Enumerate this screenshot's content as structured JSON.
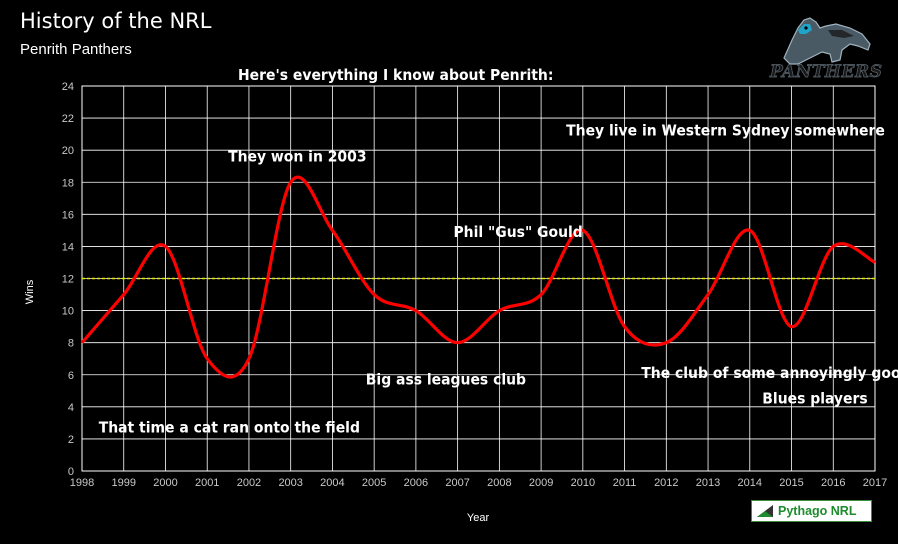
{
  "header": {
    "title": "History of the NRL",
    "subtitle": "Penrith Panthers",
    "logo_text": "PANTHERS"
  },
  "colors": {
    "background": "#000000",
    "line": "#ff0000",
    "reference_line": "#e6e600",
    "grid": "#ffffff",
    "badge_text": "#1e8b2e"
  },
  "icons": {
    "logo": "panther-icon",
    "badge": "pythago-triangle-icon"
  },
  "badge": {
    "text": "Pythago NRL"
  },
  "chart_data": {
    "type": "line",
    "title": "Here's everything I know about Penrith:",
    "xlabel": "Year",
    "ylabel": "Wins",
    "x": [
      1998,
      1999,
      2000,
      2001,
      2002,
      2003,
      2004,
      2005,
      2006,
      2007,
      2008,
      2009,
      2010,
      2011,
      2012,
      2013,
      2014,
      2015,
      2016,
      2017
    ],
    "series": [
      {
        "values": [
          8,
          11,
          14,
          7,
          7,
          18,
          15,
          11,
          10,
          8,
          10,
          11,
          15,
          9,
          8,
          11,
          15,
          9,
          14,
          13
        ]
      }
    ],
    "reference_line": {
      "y": 12,
      "style": "dashed"
    },
    "xlim": [
      1998,
      2017
    ],
    "ylim": [
      0,
      24
    ],
    "yticks": [
      0,
      2,
      4,
      6,
      8,
      10,
      12,
      14,
      16,
      18,
      20,
      22,
      24
    ],
    "grid": true,
    "legend": false,
    "annotations": [
      {
        "text": "They won in 2003",
        "x": 2001.5,
        "y": 19.3
      },
      {
        "text": "They live in Western Sydney somewhere",
        "x": 2009.6,
        "y": 20.9
      },
      {
        "text": "Phil \"Gus\" Gould",
        "x": 2006.9,
        "y": 14.6
      },
      {
        "text": "Big ass leagues club",
        "x": 2004.8,
        "y": 5.4
      },
      {
        "text": "The club of some annoyingly good",
        "x": 2011.4,
        "y": 5.8
      },
      {
        "text": "Blues players",
        "x": 2014.3,
        "y": 4.2
      },
      {
        "text": "That time a cat ran onto the field",
        "x": 1998.4,
        "y": 2.4
      }
    ]
  }
}
